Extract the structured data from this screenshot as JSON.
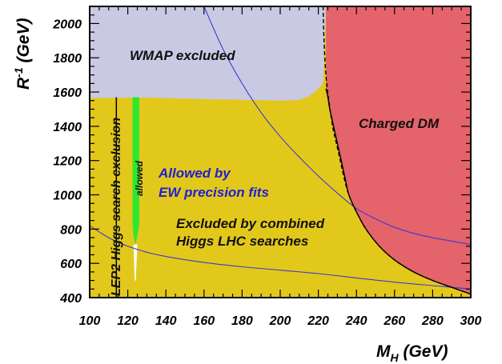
{
  "chart_data": {
    "type": "area",
    "xlabel": "M",
    "xlabel_sub": "H",
    "xlabel_unit": " (GeV)",
    "ylabel": "R",
    "ylabel_sup": "-1",
    "ylabel_unit": " (GeV)",
    "xlim": [
      100,
      300
    ],
    "ylim": [
      400,
      2100
    ],
    "x_ticks": [
      100,
      120,
      140,
      160,
      180,
      200,
      220,
      240,
      260,
      280,
      300
    ],
    "y_ticks": [
      400,
      600,
      800,
      1000,
      1200,
      1400,
      1600,
      1800,
      2000
    ],
    "colors": {
      "excluded_lhc": "#e3c81c",
      "wmap": "#c9c9e3",
      "charged_dm": "#e5636a",
      "allowed": "#2ee82e",
      "white": "#ffffff",
      "blue_line": "#3a3ad0",
      "label_blue": "#1f1fd0"
    },
    "regions": {
      "excluded_lhc": {
        "label_line1": "Excluded by combined",
        "label_line2": "Higgs LHC searches",
        "boundary": [
          [
            100,
            400
          ],
          [
            100,
            2100
          ],
          [
            300,
            2100
          ],
          [
            300,
            400
          ]
        ]
      },
      "wmap": {
        "label": "WMAP excluded",
        "boundary": [
          [
            100,
            2100
          ],
          [
            100,
            1565
          ],
          [
            130,
            1568
          ],
          [
            150,
            1562
          ],
          [
            200,
            1550
          ],
          [
            210,
            1554
          ],
          [
            215,
            1575
          ],
          [
            218,
            1600
          ],
          [
            221,
            1630
          ],
          [
            222.5,
            1660
          ],
          [
            224,
            2100
          ]
        ]
      },
      "charged_dm": {
        "label": "Charged DM",
        "boundary": [
          [
            224,
            2100
          ],
          [
            224,
            1620
          ],
          [
            225,
            1570
          ],
          [
            226,
            1500
          ],
          [
            228,
            1400
          ],
          [
            230,
            1300
          ],
          [
            232,
            1200
          ],
          [
            234,
            1100
          ],
          [
            236,
            1000
          ],
          [
            240,
            900
          ],
          [
            245,
            800
          ],
          [
            252,
            700
          ],
          [
            260,
            620
          ],
          [
            270,
            550
          ],
          [
            280,
            500
          ],
          [
            290,
            460
          ],
          [
            300,
            420
          ],
          [
            300,
            2100
          ]
        ]
      },
      "lep2": {
        "label": "LEP2 Higgs search exclusion",
        "x_max": 114
      },
      "allowed": {
        "label": "allowed",
        "boundary": [
          [
            122.5,
            1570
          ],
          [
            126,
            1570
          ],
          [
            126,
            830
          ],
          [
            125,
            760
          ],
          [
            124,
            710
          ],
          [
            123,
            760
          ],
          [
            122.5,
            830
          ]
        ]
      },
      "white_sliver": {
        "boundary": [
          [
            123,
            710
          ],
          [
            125,
            710
          ],
          [
            124.2,
            500
          ],
          [
            123.6,
            500
          ]
        ]
      }
    },
    "ew_fit_label_line1": "Allowed by",
    "ew_fit_label_line2": "EW precision fits",
    "curves": {
      "ew_upper": [
        [
          160,
          2100
        ],
        [
          170,
          1850
        ],
        [
          180,
          1650
        ],
        [
          190,
          1480
        ],
        [
          200,
          1340
        ],
        [
          210,
          1220
        ],
        [
          220,
          1110
        ],
        [
          230,
          1010
        ],
        [
          240,
          920
        ],
        [
          250,
          860
        ],
        [
          260,
          810
        ],
        [
          270,
          775
        ],
        [
          280,
          750
        ],
        [
          290,
          730
        ],
        [
          300,
          710
        ]
      ],
      "ew_lower": [
        [
          100,
          820
        ],
        [
          110,
          750
        ],
        [
          120,
          700
        ],
        [
          130,
          665
        ],
        [
          140,
          640
        ],
        [
          160,
          605
        ],
        [
          180,
          580
        ],
        [
          200,
          560
        ],
        [
          220,
          540
        ],
        [
          240,
          515
        ],
        [
          260,
          490
        ],
        [
          280,
          470
        ],
        [
          300,
          450
        ]
      ],
      "dm_dashed": [
        [
          222.5,
          2100
        ],
        [
          223,
          1900
        ],
        [
          224,
          1700
        ],
        [
          225.5,
          1550
        ],
        [
          227.5,
          1400
        ],
        [
          229.5,
          1300
        ],
        [
          231.5,
          1200
        ],
        [
          233.5,
          1100
        ],
        [
          236,
          1000
        ],
        [
          240,
          900
        ],
        [
          245,
          800
        ],
        [
          252,
          700
        ],
        [
          260,
          620
        ],
        [
          270,
          550
        ],
        [
          280,
          500
        ],
        [
          290,
          460
        ],
        [
          300,
          420
        ]
      ]
    }
  }
}
